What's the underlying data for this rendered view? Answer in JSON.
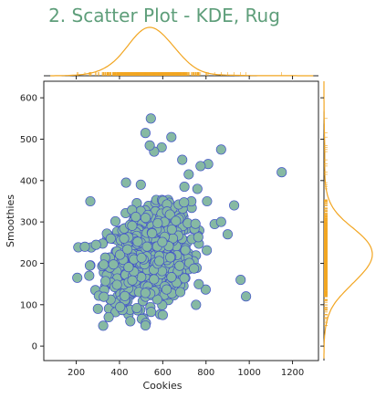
{
  "chart_data": {
    "type": "scatter",
    "title": "2. Scatter Plot - KDE, Rug",
    "xlabel": "Cookies",
    "ylabel": "Smoothies",
    "xlim": [
      50,
      1320
    ],
    "ylim": [
      -35,
      640
    ],
    "xticks": [
      200,
      400,
      600,
      800,
      1000,
      1200
    ],
    "yticks": [
      0,
      100,
      200,
      300,
      400,
      500,
      600
    ],
    "grid": false,
    "marginals": {
      "top": "kde+rug",
      "right": "kde+rug"
    },
    "colors": {
      "title": "#5e9e7a",
      "point_fill": "#86b9a3",
      "point_edge": "#4456c8",
      "kde": "#f2a622",
      "axis": "#222222"
    },
    "cluster": {
      "center_x": 540,
      "center_y": 215,
      "spread_x": 95,
      "spread_y": 55,
      "count": 950
    },
    "outliers": [
      [
        1150,
        420
      ],
      [
        985,
        120
      ],
      [
        870,
        475
      ],
      [
        810,
        440
      ],
      [
        805,
        350
      ],
      [
        775,
        435
      ],
      [
        720,
        415
      ],
      [
        700,
        385
      ],
      [
        640,
        505
      ],
      [
        595,
        480
      ],
      [
        560,
        470
      ],
      [
        545,
        550
      ],
      [
        520,
        515
      ],
      [
        540,
        485
      ],
      [
        430,
        395
      ],
      [
        265,
        350
      ],
      [
        260,
        170
      ],
      [
        205,
        165
      ],
      [
        300,
        90
      ],
      [
        450,
        60
      ],
      [
        520,
        50
      ],
      [
        600,
        75
      ],
      [
        760,
        380
      ],
      [
        900,
        270
      ],
      [
        930,
        340
      ],
      [
        960,
        160
      ],
      [
        350,
        70
      ],
      [
        690,
        450
      ],
      [
        240,
        240
      ],
      [
        870,
        300
      ]
    ]
  }
}
